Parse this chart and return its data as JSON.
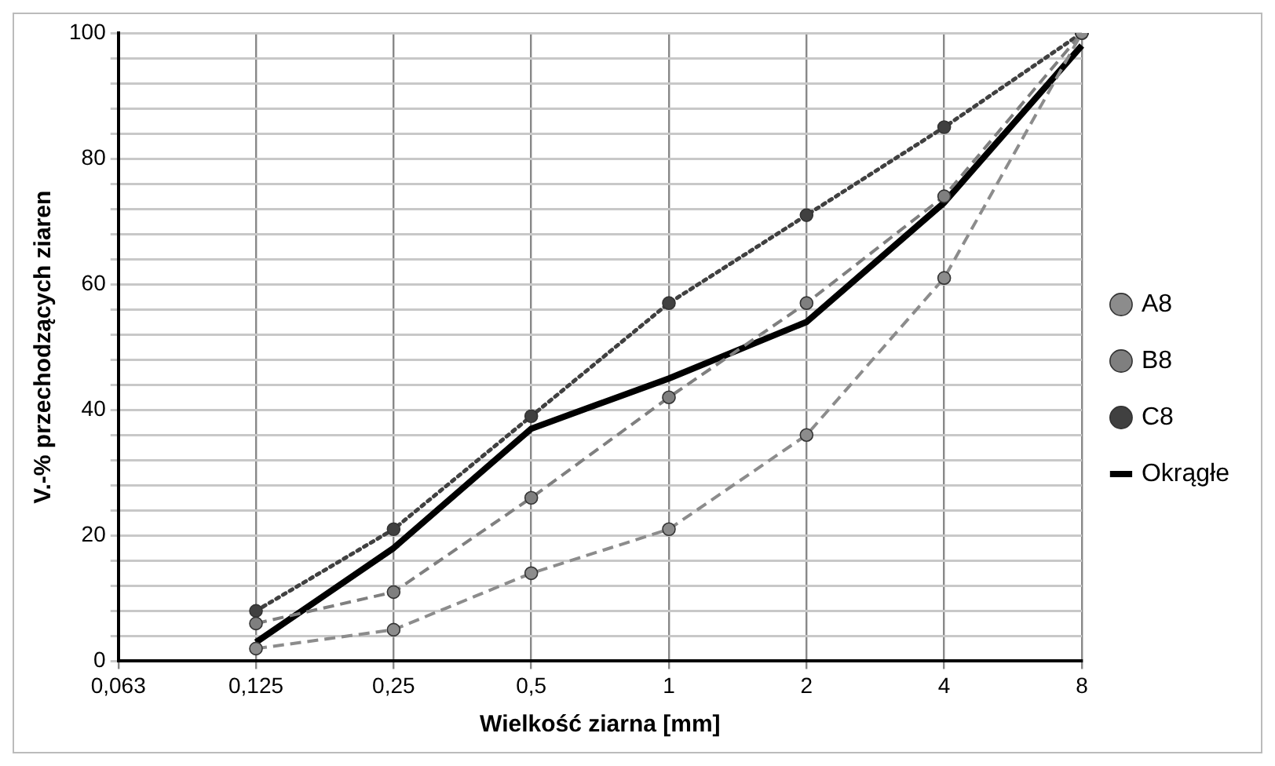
{
  "chart_data": {
    "type": "line",
    "xlabel": "Wielkość ziarna [mm]",
    "ylabel": "V.-% przechodzących ziaren",
    "categories": [
      "0,063",
      "0,125",
      "0,25",
      "0,5",
      "1",
      "2",
      "4",
      "8"
    ],
    "series": [
      {
        "name": "A8",
        "color": "#8c8c8c",
        "line_style": "dashed",
        "marker": "circle",
        "values": [
          null,
          2,
          5,
          14,
          21,
          36,
          61,
          100
        ]
      },
      {
        "name": "B8",
        "color": "#7f7f7f",
        "line_style": "dashed",
        "marker": "circle",
        "values": [
          null,
          6,
          11,
          26,
          42,
          57,
          74,
          100
        ]
      },
      {
        "name": "C8",
        "color": "#404040",
        "line_style": "dotted",
        "marker": "circle",
        "values": [
          null,
          8,
          21,
          39,
          57,
          71,
          85,
          100
        ]
      },
      {
        "name": "Okrągłe",
        "color": "#000000",
        "line_style": "solid",
        "marker": "none",
        "values": [
          null,
          3,
          18,
          37,
          45,
          54,
          73,
          98
        ]
      }
    ],
    "ylim": [
      0,
      100
    ],
    "yticks": [
      0,
      {
        "value": 4,
        "label": null
      },
      {
        "value": 8,
        "label": null
      },
      {
        "value": 12,
        "label": null
      },
      {
        "value": 16,
        "label": null
      },
      20,
      {
        "value": 24,
        "label": null
      },
      {
        "value": 28,
        "label": null
      },
      {
        "value": 32,
        "label": null
      },
      {
        "value": 36,
        "label": null
      },
      40,
      {
        "value": 44,
        "label": null
      },
      {
        "value": 48,
        "label": null
      },
      {
        "value": 52,
        "label": null
      },
      {
        "value": 56,
        "label": null
      },
      60,
      {
        "value": 64,
        "label": null
      },
      {
        "value": 68,
        "label": null
      },
      {
        "value": 72,
        "label": null
      },
      {
        "value": 76,
        "label": null
      },
      80,
      {
        "value": 84,
        "label": null
      },
      {
        "value": 88,
        "label": null
      },
      {
        "value": 92,
        "label": null
      },
      {
        "value": 96,
        "label": null
      },
      100
    ],
    "grid": true,
    "legend": "right"
  }
}
